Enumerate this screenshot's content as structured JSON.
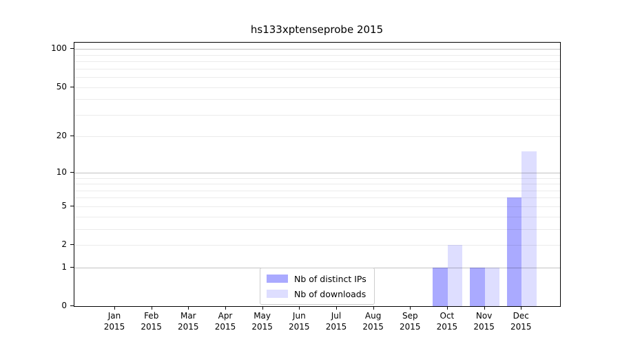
{
  "chart_data": {
    "type": "bar",
    "title": "hs133xptenseprobe 2015",
    "yscale": "log1p",
    "ylim": [
      0,
      112
    ],
    "yticks": [
      100,
      50,
      20,
      10,
      5,
      2,
      1,
      0
    ],
    "gridlines": {
      "major": [
        1,
        10,
        100
      ],
      "minor": [
        2,
        3,
        4,
        5,
        6,
        7,
        8,
        9,
        20,
        30,
        40,
        50,
        60,
        70,
        80,
        90
      ]
    },
    "categories": [
      {
        "month": "Jan",
        "year": "2015"
      },
      {
        "month": "Feb",
        "year": "2015"
      },
      {
        "month": "Mar",
        "year": "2015"
      },
      {
        "month": "Apr",
        "year": "2015"
      },
      {
        "month": "May",
        "year": "2015"
      },
      {
        "month": "Jun",
        "year": "2015"
      },
      {
        "month": "Jul",
        "year": "2015"
      },
      {
        "month": "Aug",
        "year": "2015"
      },
      {
        "month": "Sep",
        "year": "2015"
      },
      {
        "month": "Oct",
        "year": "2015"
      },
      {
        "month": "Nov",
        "year": "2015"
      },
      {
        "month": "Dec",
        "year": "2015"
      }
    ],
    "series": [
      {
        "name": "Nb of distinct IPs",
        "color": "#aaaaff",
        "values": [
          0,
          0,
          0,
          0,
          0,
          0,
          0,
          0,
          0,
          1,
          1,
          6
        ]
      },
      {
        "name": "Nb of downloads",
        "color": "#dedeff",
        "values": [
          0,
          0,
          0,
          0,
          0,
          0,
          0,
          0,
          0,
          2,
          1,
          15
        ]
      }
    ],
    "legend_position": "lower center"
  }
}
